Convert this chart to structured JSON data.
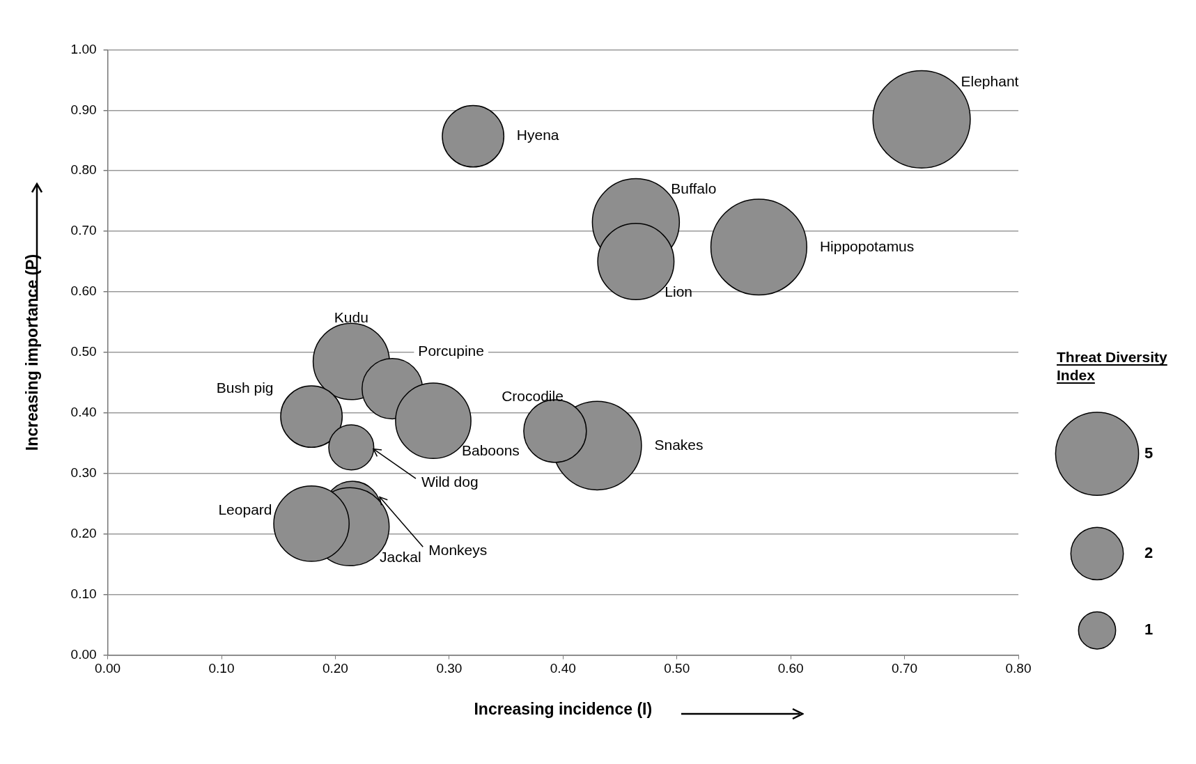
{
  "chart_data": {
    "type": "bubble",
    "xlabel": "Increasing incidence (I)",
    "ylabel": "Increasing importance (P)",
    "legend_title": "Threat Diversity Index",
    "xlim": [
      0,
      0.8
    ],
    "xticks": [
      {
        "value": 0,
        "label": "0.00"
      },
      {
        "value": 0.1,
        "label": "0.10"
      },
      {
        "value": 0.2,
        "label": "0.20"
      },
      {
        "value": 0.3,
        "label": "0.30"
      },
      {
        "value": 0.4,
        "label": "0.40"
      },
      {
        "value": 0.5,
        "label": "0.50"
      },
      {
        "value": 0.6,
        "label": "0.60"
      },
      {
        "value": 0.7,
        "label": "0.70"
      },
      {
        "value": 0.8,
        "label": "0.80"
      }
    ],
    "ylim": [
      0,
      1
    ],
    "yticks": [
      {
        "value": 0,
        "label": "0.00"
      },
      {
        "value": 0.1,
        "label": "0.10"
      },
      {
        "value": 0.2,
        "label": "0.20"
      },
      {
        "value": 0.3,
        "label": "0.30"
      },
      {
        "value": 0.4,
        "label": "0.40"
      },
      {
        "value": 0.5,
        "label": "0.50"
      },
      {
        "value": 0.6,
        "label": "0.60"
      },
      {
        "value": 0.7,
        "label": "0.70"
      },
      {
        "value": 0.8,
        "label": "0.80"
      },
      {
        "value": 0.9,
        "label": "0.90"
      },
      {
        "value": 1,
        "label": "1.00"
      }
    ],
    "grid": "y",
    "marker": "circle",
    "size_legend": [
      5,
      2,
      1
    ],
    "series": [
      {
        "name": "Elephant",
        "color": "#8e8e8e",
        "x": [
          0.715
        ],
        "values": [
          0.885
        ],
        "sizes": [
          7
        ]
      },
      {
        "name": "Hyena",
        "color": "#8e8e8e",
        "x": [
          0.321
        ],
        "values": [
          0.857
        ],
        "sizes": [
          2.8
        ]
      },
      {
        "name": "Buffalo",
        "color": "#8e8e8e",
        "x": [
          0.464
        ],
        "values": [
          0.715
        ],
        "sizes": [
          5.6
        ]
      },
      {
        "name": "Lion",
        "color": "#8e8e8e",
        "x": [
          0.464
        ],
        "values": [
          0.65
        ],
        "sizes": [
          4.3
        ]
      },
      {
        "name": "Hippopotamus",
        "color": "#8e8e8e",
        "x": [
          0.572
        ],
        "values": [
          0.674
        ],
        "sizes": [
          6.8
        ]
      },
      {
        "name": "Kudu",
        "color": "#8e8e8e",
        "x": [
          0.214
        ],
        "values": [
          0.485
        ],
        "sizes": [
          4.3
        ]
      },
      {
        "name": "Porcupine",
        "color": "#8e8e8e",
        "x": [
          0.25
        ],
        "values": [
          0.44
        ],
        "sizes": [
          2.7
        ]
      },
      {
        "name": "Baboons",
        "color": "#8e8e8e",
        "x": [
          0.286
        ],
        "values": [
          0.387
        ],
        "sizes": [
          4.2
        ]
      },
      {
        "name": "Bush pig",
        "color": "#8e8e8e",
        "x": [
          0.179
        ],
        "values": [
          0.394
        ],
        "sizes": [
          2.8
        ]
      },
      {
        "name": "Wild dog",
        "color": "#8e8e8e",
        "x": [
          0.214
        ],
        "values": [
          0.343
        ],
        "sizes": [
          1.5
        ]
      },
      {
        "name": "Snakes",
        "color": "#8e8e8e",
        "x": [
          0.43
        ],
        "values": [
          0.346
        ],
        "sizes": [
          5.8
        ]
      },
      {
        "name": "Crocodile",
        "color": "#8e8e8e",
        "x": [
          0.393
        ],
        "values": [
          0.37
        ],
        "sizes": [
          2.9
        ]
      },
      {
        "name": "Monkeys",
        "color": "#8e8e8e",
        "x": [
          0.215
        ],
        "values": [
          0.24
        ],
        "sizes": [
          2.4
        ]
      },
      {
        "name": "Jackal",
        "color": "#8e8e8e",
        "x": [
          0.213
        ],
        "values": [
          0.212
        ],
        "sizes": [
          4.5
        ]
      },
      {
        "name": "Leopard",
        "color": "#8e8e8e",
        "x": [
          0.179
        ],
        "values": [
          0.217
        ],
        "sizes": [
          4.2
        ]
      }
    ]
  }
}
